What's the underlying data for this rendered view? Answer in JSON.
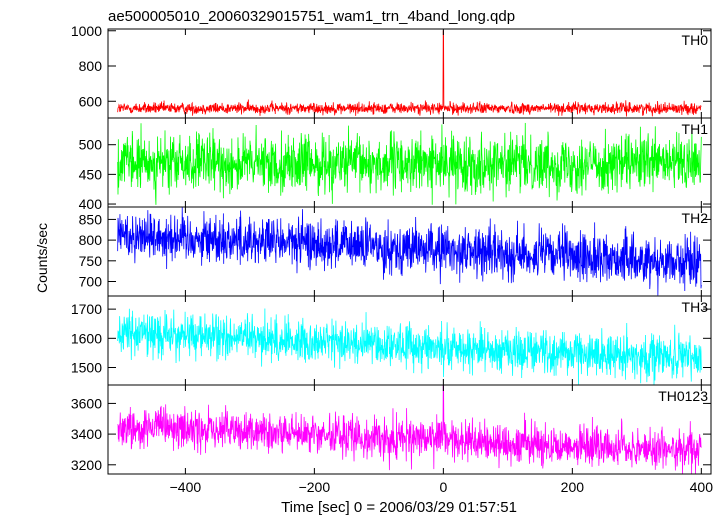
{
  "chart_data": {
    "type": "line",
    "title": "ae500005010_20060329015751_wam1_trn_4band_long.qdp",
    "xlabel": "Time [sec] 0 = 2006/03/29 01:57:51",
    "ylabel": "Counts/sec",
    "xlim": [
      -520,
      415
    ],
    "xticks": [
      -400,
      -200,
      0,
      200,
      400
    ],
    "xtick_labels": [
      "−400",
      "−200",
      "0",
      "200",
      "400"
    ],
    "grid": false,
    "legend": "panel labels at top-right of each panel",
    "panels": [
      {
        "name": "TH0",
        "color": "#ff0000",
        "ylim": [
          505,
          1010
        ],
        "yticks": [
          600,
          800,
          1000
        ],
        "ytick_labels": [
          "600",
          "800",
          "1000"
        ],
        "approx_mean": 560,
        "approx_noise": 22,
        "spike": {
          "x": 0,
          "y": 1000
        }
      },
      {
        "name": "TH1",
        "color": "#00ff00",
        "ylim": [
          395,
          545
        ],
        "yticks": [
          400,
          450,
          500
        ],
        "ytick_labels": [
          "400",
          "450",
          "500"
        ],
        "approx_mean": 468,
        "approx_noise": 32
      },
      {
        "name": "TH2",
        "color": "#0000ff",
        "ylim": [
          665,
          880
        ],
        "yticks": [
          700,
          750,
          800,
          850
        ],
        "ytick_labels": [
          "700",
          "750",
          "800",
          "850"
        ],
        "approx_trend": [
          [
            -505,
            815
          ],
          [
            400,
            745
          ]
        ],
        "approx_noise": 40
      },
      {
        "name": "TH3",
        "color": "#00ffff",
        "ylim": [
          1440,
          1745
        ],
        "yticks": [
          1500,
          1600,
          1700
        ],
        "ytick_labels": [
          "1500",
          "1600",
          "1700"
        ],
        "approx_trend": [
          [
            -505,
            1620
          ],
          [
            400,
            1530
          ]
        ],
        "approx_noise": 50
      },
      {
        "name": "TH0123",
        "color": "#ff00ff",
        "ylim": [
          3140,
          3720
        ],
        "yticks": [
          3200,
          3400,
          3600
        ],
        "ytick_labels": [
          "3200",
          "3400",
          "3600"
        ],
        "approx_trend": [
          [
            -505,
            3450
          ],
          [
            400,
            3290
          ]
        ],
        "approx_noise": 90,
        "spike": {
          "x": 0,
          "y": 3720
        }
      }
    ]
  }
}
